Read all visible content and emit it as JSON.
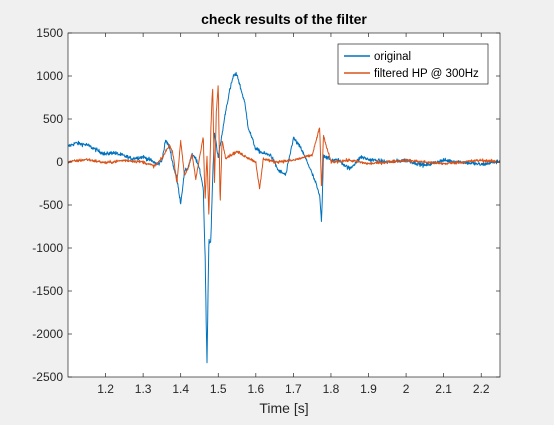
{
  "chart_data": {
    "type": "line",
    "title": "check results of the filter",
    "xlabel": "Time [s]",
    "ylabel": "",
    "xlim": [
      1.1,
      2.25
    ],
    "ylim": [
      -2500,
      1500
    ],
    "xticks": [
      1.2,
      1.3,
      1.4,
      1.5,
      1.6,
      1.7,
      1.8,
      1.9,
      2,
      2.1,
      2.2
    ],
    "xtick_labels": [
      "1.2",
      "1.3",
      "1.4",
      "1.5",
      "1.6",
      "1.7",
      "1.8",
      "1.9",
      "2",
      "2.1",
      "2.2"
    ],
    "yticks": [
      -2500,
      -2000,
      -1500,
      -1000,
      -500,
      0,
      500,
      1000,
      1500
    ],
    "ytick_labels": [
      "-2500",
      "-2000",
      "-1500",
      "-1000",
      "-500",
      "0",
      "500",
      "1000",
      "1500"
    ],
    "grid": false,
    "legend_placement": "top-right",
    "series": [
      {
        "name": "original",
        "color": "#0072bd",
        "noise": 40,
        "x": [
          1.1,
          1.12,
          1.15,
          1.18,
          1.2,
          1.22,
          1.25,
          1.27,
          1.3,
          1.32,
          1.34,
          1.35,
          1.36,
          1.37,
          1.38,
          1.39,
          1.4,
          1.41,
          1.42,
          1.43,
          1.44,
          1.45,
          1.46,
          1.465,
          1.47,
          1.475,
          1.48,
          1.485,
          1.49,
          1.5,
          1.51,
          1.52,
          1.53,
          1.54,
          1.55,
          1.56,
          1.57,
          1.58,
          1.6,
          1.62,
          1.64,
          1.66,
          1.68,
          1.7,
          1.72,
          1.74,
          1.76,
          1.77,
          1.775,
          1.78,
          1.8,
          1.82,
          1.85,
          1.88,
          1.9,
          1.95,
          2.0,
          2.05,
          2.1,
          2.15,
          2.2,
          2.25
        ],
        "y": [
          180,
          220,
          200,
          130,
          90,
          110,
          70,
          40,
          60,
          20,
          -30,
          20,
          250,
          180,
          -40,
          -200,
          -480,
          -120,
          -60,
          80,
          40,
          -80,
          -300,
          -1100,
          -2350,
          -900,
          -950,
          -200,
          350,
          50,
          320,
          600,
          820,
          1000,
          1020,
          850,
          700,
          400,
          150,
          100,
          80,
          -100,
          -150,
          280,
          160,
          -30,
          -250,
          -400,
          -700,
          80,
          20,
          20,
          -80,
          60,
          30,
          0,
          20,
          -40,
          20,
          0,
          -30,
          10
        ]
      },
      {
        "name": "filtered HP @ 300Hz",
        "color": "#d95319",
        "noise": 30,
        "x": [
          1.1,
          1.15,
          1.2,
          1.25,
          1.3,
          1.33,
          1.35,
          1.37,
          1.38,
          1.39,
          1.4,
          1.41,
          1.42,
          1.43,
          1.44,
          1.45,
          1.46,
          1.465,
          1.47,
          1.475,
          1.48,
          1.485,
          1.49,
          1.495,
          1.5,
          1.505,
          1.51,
          1.52,
          1.55,
          1.6,
          1.61,
          1.62,
          1.65,
          1.7,
          1.75,
          1.77,
          1.775,
          1.78,
          1.8,
          1.85,
          1.9,
          2.0,
          2.1,
          2.2,
          2.25
        ],
        "y": [
          0,
          30,
          -10,
          20,
          0,
          -50,
          40,
          200,
          90,
          -250,
          250,
          -150,
          -80,
          100,
          -200,
          50,
          300,
          -450,
          80,
          -640,
          350,
          900,
          -250,
          600,
          900,
          -500,
          250,
          50,
          120,
          0,
          -320,
          40,
          0,
          20,
          80,
          400,
          -330,
          300,
          0,
          20,
          -20,
          20,
          -20,
          20,
          0
        ]
      }
    ]
  }
}
